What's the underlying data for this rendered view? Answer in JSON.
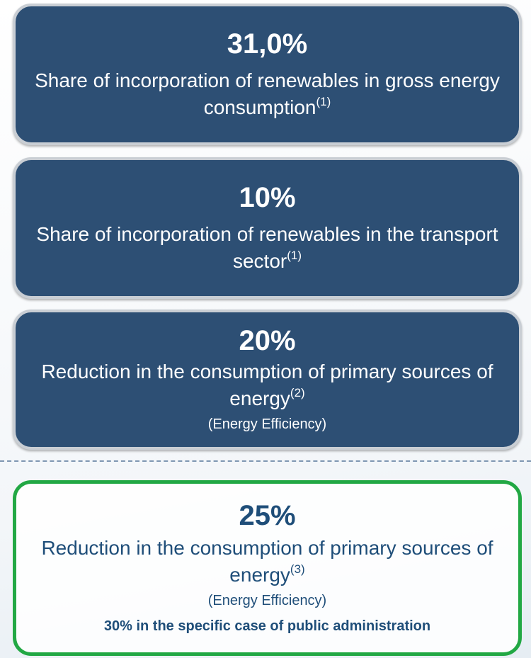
{
  "cards": [
    {
      "value": "31,0%",
      "description": "Share of incorporation of renewables in gross energy consumption",
      "note_ref": "(1)"
    },
    {
      "value": "10%",
      "description": "Share of incorporation of renewables in the transport sector",
      "note_ref": "(1)"
    },
    {
      "value": "20%",
      "description": "Reduction in the consumption of primary sources of energy",
      "note_ref": "(2)",
      "subnote": "(Energy Efficiency)"
    },
    {
      "value": "25%",
      "description": "Reduction in the consumption of primary sources of energy",
      "note_ref": "(3)",
      "subnote": "(Energy Efficiency)",
      "extra": "30% in the specific case of public administration"
    }
  ]
}
